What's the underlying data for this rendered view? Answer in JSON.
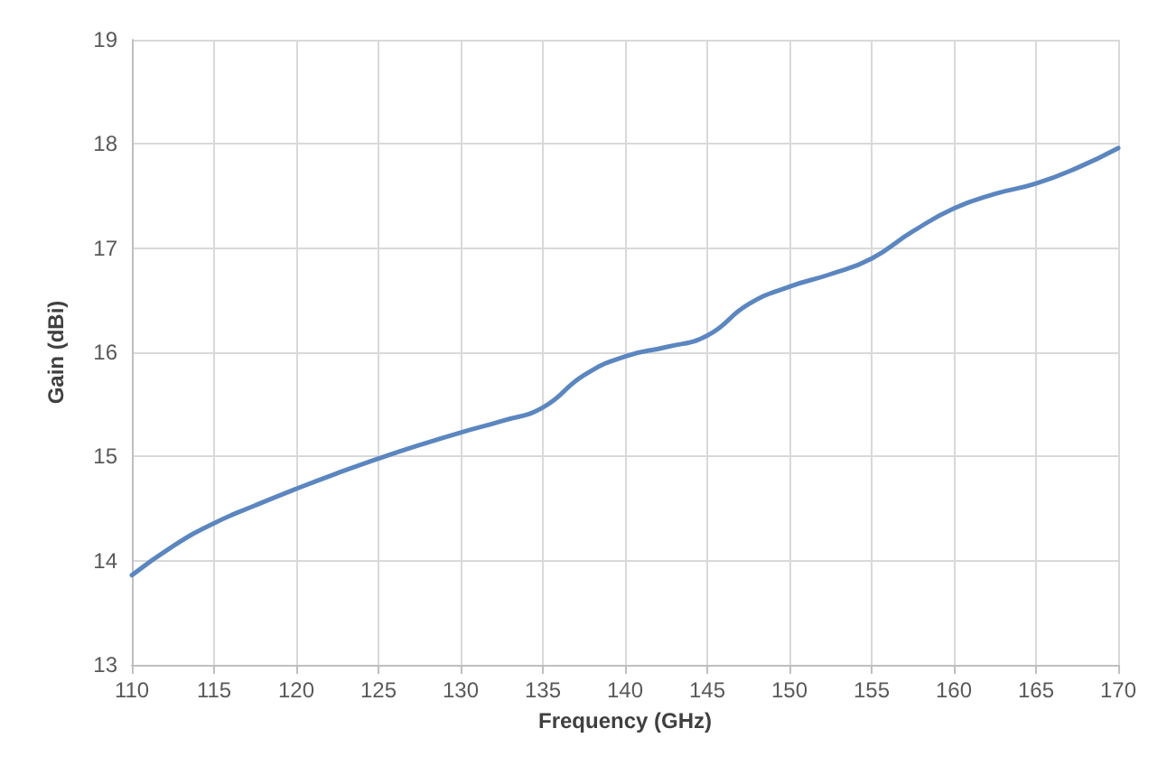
{
  "chart_data": {
    "type": "line",
    "xlabel": "Frequency (GHz)",
    "ylabel": "Gain (dBi)",
    "x": [
      110,
      112.5,
      115,
      117.5,
      120,
      122.5,
      125,
      127.5,
      130,
      132.5,
      135,
      137.5,
      140,
      142.5,
      145,
      147.5,
      150,
      152.5,
      155,
      157.5,
      160,
      162.5,
      165,
      167.5,
      170
    ],
    "series": [
      {
        "color": "#5b86c0",
        "values": [
          13.86,
          14.14,
          14.36,
          14.53,
          14.69,
          14.84,
          14.98,
          15.11,
          15.23,
          15.34,
          15.47,
          15.78,
          15.96,
          16.05,
          16.16,
          16.46,
          16.63,
          16.75,
          16.9,
          17.16,
          17.38,
          17.52,
          17.62,
          17.77,
          17.96
        ]
      }
    ],
    "xlim": [
      110,
      170
    ],
    "xticks": [
      110,
      115,
      120,
      125,
      130,
      135,
      140,
      145,
      150,
      155,
      160,
      165,
      170
    ],
    "ylim": [
      13,
      19
    ],
    "yticks": [
      13,
      14,
      15,
      16,
      17,
      18,
      19
    ],
    "grid": true,
    "marker": "none",
    "line_style": "solid"
  }
}
